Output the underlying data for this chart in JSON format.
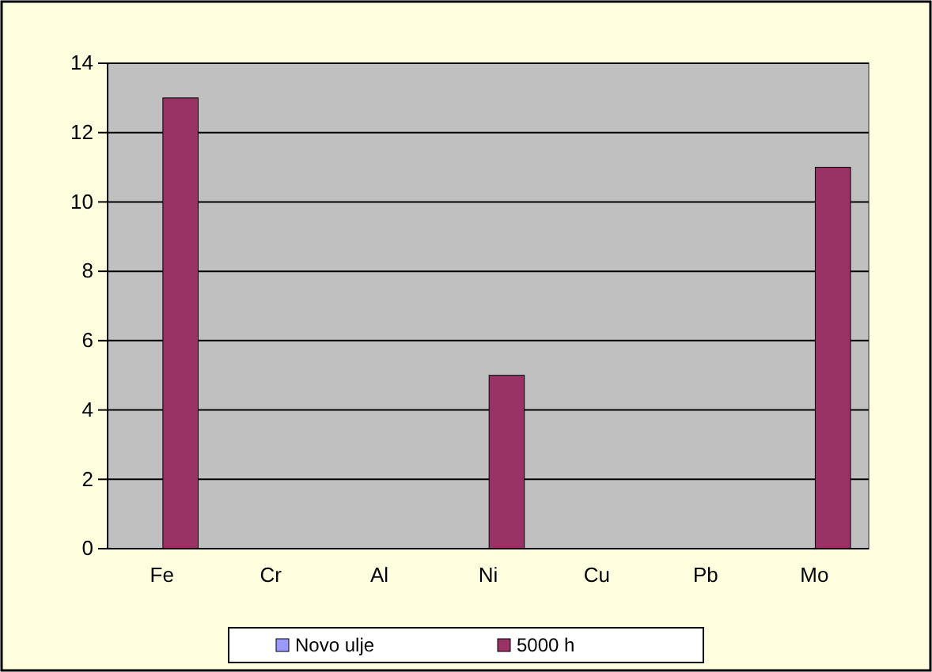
{
  "chart_data": {
    "type": "bar",
    "categories": [
      "Fe",
      "Cr",
      "Al",
      "Ni",
      "Cu",
      "Pb",
      "Mo"
    ],
    "series": [
      {
        "name": "Novo ulje",
        "color": "#9999ff",
        "values": [
          0,
          0,
          0,
          0,
          0,
          0,
          0
        ]
      },
      {
        "name": "5000 h",
        "color": "#993366",
        "values": [
          13,
          0,
          0,
          5,
          0,
          0,
          11
        ]
      }
    ],
    "ylim": [
      0,
      14
    ],
    "yticks": [
      0,
      2,
      4,
      6,
      8,
      10,
      12,
      14
    ],
    "grid": "y",
    "legend": "bottom"
  }
}
